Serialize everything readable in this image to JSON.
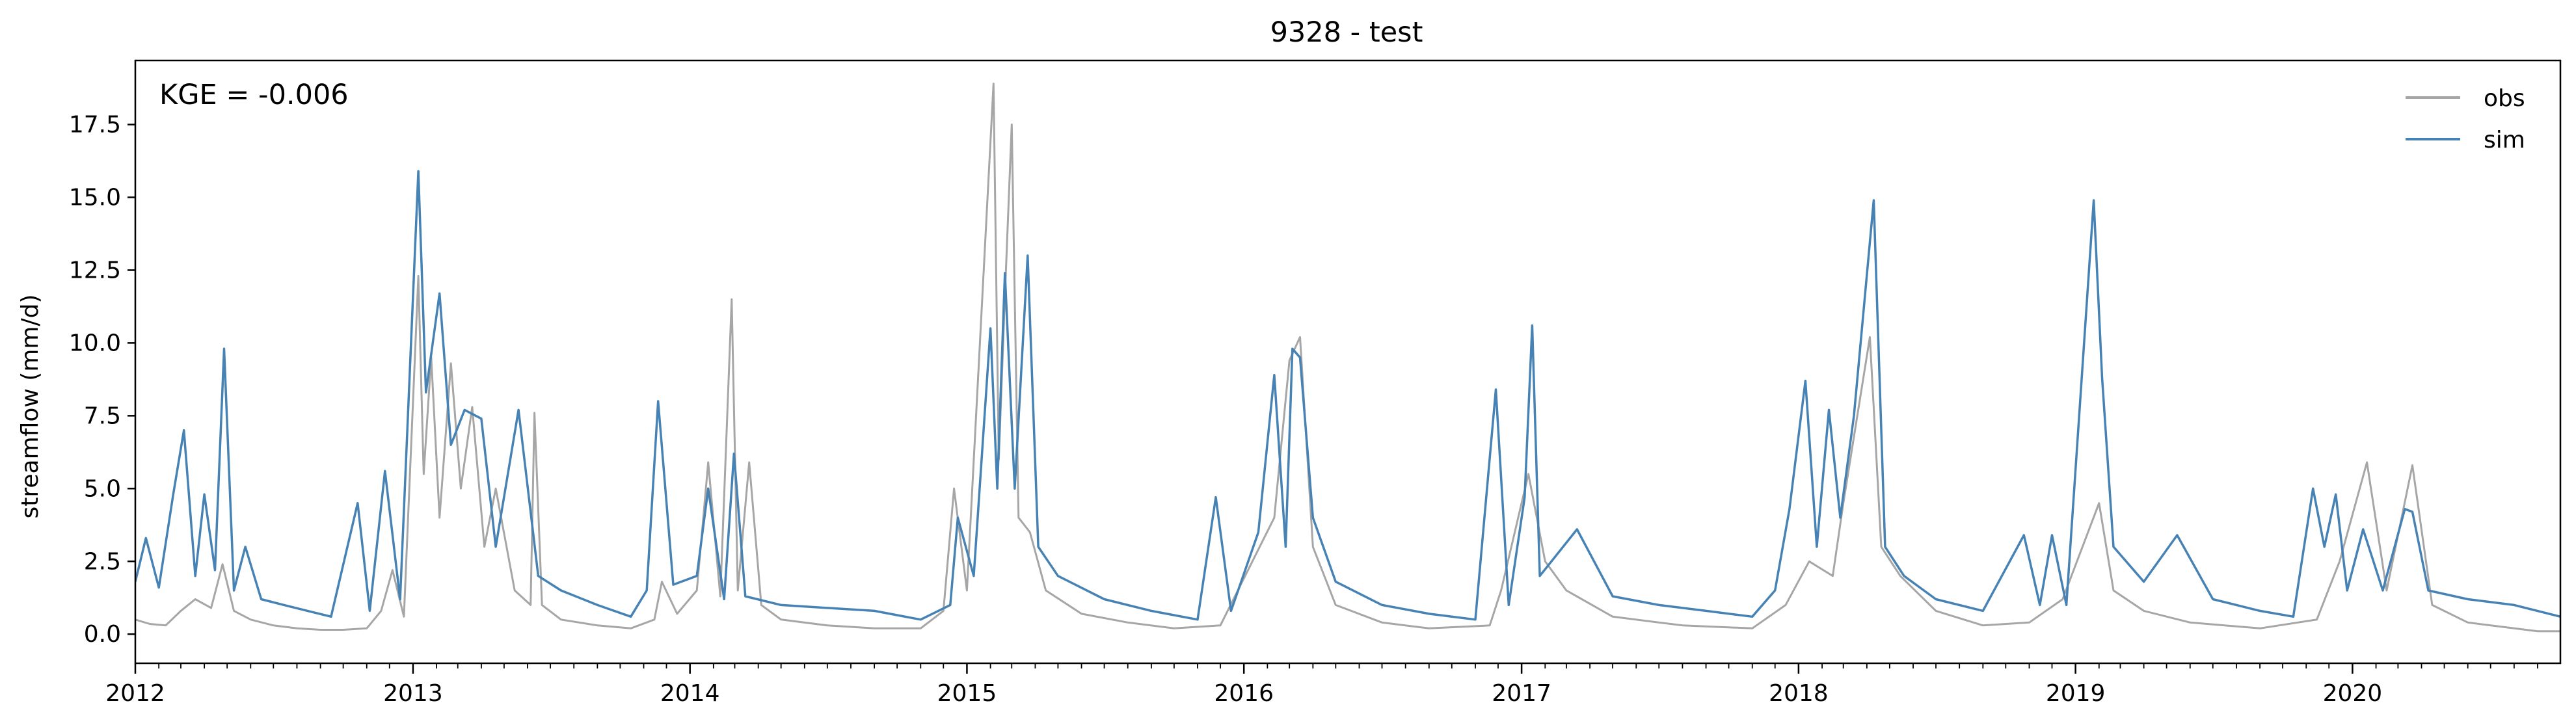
{
  "chart_data": {
    "type": "line",
    "title": "9328 - test",
    "xlabel": "",
    "ylabel": "streamflow (mm/d)",
    "annotation": "KGE = -0.006",
    "xlim": [
      "2012-01-01",
      "2020-10-01"
    ],
    "ylim": [
      -1.0,
      19.7
    ],
    "x_ticks": [
      "2012",
      "2013",
      "2014",
      "2015",
      "2016",
      "2017",
      "2018",
      "2019",
      "2020"
    ],
    "y_ticks": [
      "0.0",
      "2.5",
      "5.0",
      "7.5",
      "10.0",
      "12.5",
      "15.0",
      "17.5"
    ],
    "legend_position": "top-right",
    "grid": false,
    "series": [
      {
        "name": "obs",
        "color": "#a6a6a6",
        "points": [
          [
            "2012-01-01",
            0.5
          ],
          [
            "2012-01-20",
            0.35
          ],
          [
            "2012-02-10",
            0.3
          ],
          [
            "2012-03-01",
            0.8
          ],
          [
            "2012-03-20",
            1.2
          ],
          [
            "2012-04-10",
            0.9
          ],
          [
            "2012-04-25",
            2.4
          ],
          [
            "2012-05-10",
            0.8
          ],
          [
            "2012-06-01",
            0.5
          ],
          [
            "2012-07-01",
            0.3
          ],
          [
            "2012-08-01",
            0.2
          ],
          [
            "2012-09-01",
            0.15
          ],
          [
            "2012-10-01",
            0.15
          ],
          [
            "2012-11-01",
            0.2
          ],
          [
            "2012-11-20",
            0.8
          ],
          [
            "2012-12-05",
            2.2
          ],
          [
            "2012-12-20",
            0.6
          ],
          [
            "2013-01-08",
            12.3
          ],
          [
            "2013-01-15",
            5.5
          ],
          [
            "2013-01-25",
            9.5
          ],
          [
            "2013-02-05",
            4.0
          ],
          [
            "2013-02-20",
            9.3
          ],
          [
            "2013-03-05",
            5.0
          ],
          [
            "2013-03-20",
            7.8
          ],
          [
            "2013-04-05",
            3.0
          ],
          [
            "2013-04-20",
            5.0
          ],
          [
            "2013-05-15",
            1.5
          ],
          [
            "2013-06-05",
            1.0
          ],
          [
            "2013-06-10",
            7.6
          ],
          [
            "2013-06-20",
            1.0
          ],
          [
            "2013-07-15",
            0.5
          ],
          [
            "2013-09-01",
            0.3
          ],
          [
            "2013-10-15",
            0.2
          ],
          [
            "2013-11-15",
            0.5
          ],
          [
            "2013-11-25",
            1.8
          ],
          [
            "2013-12-15",
            0.7
          ],
          [
            "2014-01-10",
            1.5
          ],
          [
            "2014-01-25",
            5.9
          ],
          [
            "2014-02-10",
            1.3
          ],
          [
            "2014-02-25",
            11.5
          ],
          [
            "2014-03-05",
            1.5
          ],
          [
            "2014-03-20",
            5.9
          ],
          [
            "2014-04-05",
            1.0
          ],
          [
            "2014-05-01",
            0.5
          ],
          [
            "2014-07-01",
            0.3
          ],
          [
            "2014-09-01",
            0.2
          ],
          [
            "2014-11-01",
            0.2
          ],
          [
            "2014-12-01",
            0.8
          ],
          [
            "2014-12-15",
            5.0
          ],
          [
            "2015-01-01",
            1.5
          ],
          [
            "2015-02-05",
            18.9
          ],
          [
            "2015-02-12",
            6.0
          ],
          [
            "2015-02-20",
            11.6
          ],
          [
            "2015-03-01",
            17.5
          ],
          [
            "2015-03-10",
            4.0
          ],
          [
            "2015-03-25",
            3.5
          ],
          [
            "2015-04-15",
            1.5
          ],
          [
            "2015-06-01",
            0.7
          ],
          [
            "2015-08-01",
            0.4
          ],
          [
            "2015-10-01",
            0.2
          ],
          [
            "2015-12-01",
            0.3
          ],
          [
            "2016-02-10",
            4.0
          ],
          [
            "2016-03-01",
            9.4
          ],
          [
            "2016-03-15",
            10.2
          ],
          [
            "2016-04-01",
            3.0
          ],
          [
            "2016-05-01",
            1.0
          ],
          [
            "2016-07-01",
            0.4
          ],
          [
            "2016-09-01",
            0.2
          ],
          [
            "2016-11-20",
            0.3
          ],
          [
            "2016-12-05",
            1.5
          ],
          [
            "2017-01-10",
            5.5
          ],
          [
            "2017-02-01",
            2.5
          ],
          [
            "2017-03-01",
            1.5
          ],
          [
            "2017-05-01",
            0.6
          ],
          [
            "2017-08-01",
            0.3
          ],
          [
            "2017-11-01",
            0.2
          ],
          [
            "2017-12-15",
            1.0
          ],
          [
            "2018-01-15",
            2.5
          ],
          [
            "2018-02-15",
            2.0
          ],
          [
            "2018-03-01",
            4.5
          ],
          [
            "2018-04-05",
            10.2
          ],
          [
            "2018-04-20",
            3.0
          ],
          [
            "2018-05-15",
            2.0
          ],
          [
            "2018-07-01",
            0.8
          ],
          [
            "2018-09-01",
            0.3
          ],
          [
            "2018-11-01",
            0.4
          ],
          [
            "2018-12-15",
            1.2
          ],
          [
            "2019-02-01",
            4.5
          ],
          [
            "2019-02-20",
            1.5
          ],
          [
            "2019-04-01",
            0.8
          ],
          [
            "2019-06-01",
            0.4
          ],
          [
            "2019-09-01",
            0.2
          ],
          [
            "2019-11-15",
            0.5
          ],
          [
            "2019-12-15",
            2.5
          ],
          [
            "2020-01-20",
            5.9
          ],
          [
            "2020-02-15",
            1.5
          ],
          [
            "2020-03-20",
            5.8
          ],
          [
            "2020-04-15",
            1.0
          ],
          [
            "2020-06-01",
            0.4
          ],
          [
            "2020-09-01",
            0.1
          ],
          [
            "2020-10-01",
            0.1
          ]
        ]
      },
      {
        "name": "sim",
        "color": "#4682b4",
        "points": [
          [
            "2012-01-01",
            1.8
          ],
          [
            "2012-01-15",
            3.3
          ],
          [
            "2012-02-01",
            1.6
          ],
          [
            "2012-02-20",
            4.8
          ],
          [
            "2012-03-05",
            7.0
          ],
          [
            "2012-03-20",
            2.0
          ],
          [
            "2012-04-01",
            4.8
          ],
          [
            "2012-04-15",
            2.2
          ],
          [
            "2012-04-27",
            9.8
          ],
          [
            "2012-05-10",
            1.5
          ],
          [
            "2012-05-25",
            3.0
          ],
          [
            "2012-06-15",
            1.2
          ],
          [
            "2012-07-15",
            1.0
          ],
          [
            "2012-08-15",
            0.8
          ],
          [
            "2012-09-15",
            0.6
          ],
          [
            "2012-10-20",
            4.5
          ],
          [
            "2012-11-05",
            0.8
          ],
          [
            "2012-11-25",
            5.6
          ],
          [
            "2012-12-15",
            1.2
          ],
          [
            "2013-01-08",
            15.9
          ],
          [
            "2013-01-18",
            8.3
          ],
          [
            "2013-02-05",
            11.7
          ],
          [
            "2013-02-20",
            6.5
          ],
          [
            "2013-03-10",
            7.7
          ],
          [
            "2013-04-01",
            7.4
          ],
          [
            "2013-04-20",
            3.0
          ],
          [
            "2013-05-20",
            7.7
          ],
          [
            "2013-06-15",
            2.0
          ],
          [
            "2013-07-15",
            1.5
          ],
          [
            "2013-09-01",
            1.0
          ],
          [
            "2013-10-15",
            0.6
          ],
          [
            "2013-11-05",
            1.5
          ],
          [
            "2013-11-20",
            8.0
          ],
          [
            "2013-12-10",
            1.7
          ],
          [
            "2014-01-10",
            2.0
          ],
          [
            "2014-01-25",
            5.0
          ],
          [
            "2014-02-15",
            1.2
          ],
          [
            "2014-02-28",
            6.2
          ],
          [
            "2014-03-15",
            1.3
          ],
          [
            "2014-05-01",
            1.0
          ],
          [
            "2014-07-01",
            0.9
          ],
          [
            "2014-09-01",
            0.8
          ],
          [
            "2014-11-01",
            0.5
          ],
          [
            "2014-12-10",
            1.0
          ],
          [
            "2014-12-20",
            4.0
          ],
          [
            "2015-01-10",
            2.0
          ],
          [
            "2015-02-01",
            10.5
          ],
          [
            "2015-02-10",
            5.0
          ],
          [
            "2015-02-20",
            12.4
          ],
          [
            "2015-03-05",
            5.0
          ],
          [
            "2015-03-22",
            13.0
          ],
          [
            "2015-04-05",
            3.0
          ],
          [
            "2015-05-01",
            2.0
          ],
          [
            "2015-07-01",
            1.2
          ],
          [
            "2015-09-01",
            0.8
          ],
          [
            "2015-11-01",
            0.5
          ],
          [
            "2015-11-25",
            4.7
          ],
          [
            "2015-12-15",
            0.8
          ],
          [
            "2016-01-20",
            3.5
          ],
          [
            "2016-02-10",
            8.9
          ],
          [
            "2016-02-25",
            3.0
          ],
          [
            "2016-03-05",
            9.8
          ],
          [
            "2016-03-15",
            9.5
          ],
          [
            "2016-04-01",
            4.0
          ],
          [
            "2016-05-01",
            1.8
          ],
          [
            "2016-07-01",
            1.0
          ],
          [
            "2016-09-01",
            0.7
          ],
          [
            "2016-11-01",
            0.5
          ],
          [
            "2016-11-28",
            8.4
          ],
          [
            "2016-12-15",
            1.0
          ],
          [
            "2017-01-05",
            4.7
          ],
          [
            "2017-01-15",
            10.6
          ],
          [
            "2017-01-25",
            2.0
          ],
          [
            "2017-03-15",
            3.6
          ],
          [
            "2017-05-01",
            1.3
          ],
          [
            "2017-07-01",
            1.0
          ],
          [
            "2017-09-01",
            0.8
          ],
          [
            "2017-11-01",
            0.6
          ],
          [
            "2017-12-01",
            1.5
          ],
          [
            "2017-12-20",
            4.3
          ],
          [
            "2018-01-10",
            8.7
          ],
          [
            "2018-01-25",
            3.0
          ],
          [
            "2018-02-10",
            7.7
          ],
          [
            "2018-02-25",
            4.0
          ],
          [
            "2018-03-15",
            7.5
          ],
          [
            "2018-04-10",
            14.9
          ],
          [
            "2018-04-25",
            3.0
          ],
          [
            "2018-05-20",
            2.0
          ],
          [
            "2018-07-01",
            1.2
          ],
          [
            "2018-09-01",
            0.8
          ],
          [
            "2018-10-25",
            3.4
          ],
          [
            "2018-11-15",
            1.0
          ],
          [
            "2018-12-01",
            3.4
          ],
          [
            "2018-12-20",
            1.0
          ],
          [
            "2019-01-25",
            14.9
          ],
          [
            "2019-02-05",
            8.8
          ],
          [
            "2019-02-20",
            3.0
          ],
          [
            "2019-04-01",
            1.8
          ],
          [
            "2019-05-15",
            3.4
          ],
          [
            "2019-07-01",
            1.2
          ],
          [
            "2019-09-01",
            0.8
          ],
          [
            "2019-10-15",
            0.6
          ],
          [
            "2019-11-10",
            5.0
          ],
          [
            "2019-11-25",
            3.0
          ],
          [
            "2019-12-10",
            4.8
          ],
          [
            "2019-12-25",
            1.5
          ],
          [
            "2020-01-15",
            3.6
          ],
          [
            "2020-02-10",
            1.5
          ],
          [
            "2020-03-10",
            4.3
          ],
          [
            "2020-03-20",
            4.2
          ],
          [
            "2020-04-10",
            1.5
          ],
          [
            "2020-06-01",
            1.2
          ],
          [
            "2020-08-01",
            1.0
          ],
          [
            "2020-10-01",
            0.6
          ]
        ]
      }
    ]
  }
}
